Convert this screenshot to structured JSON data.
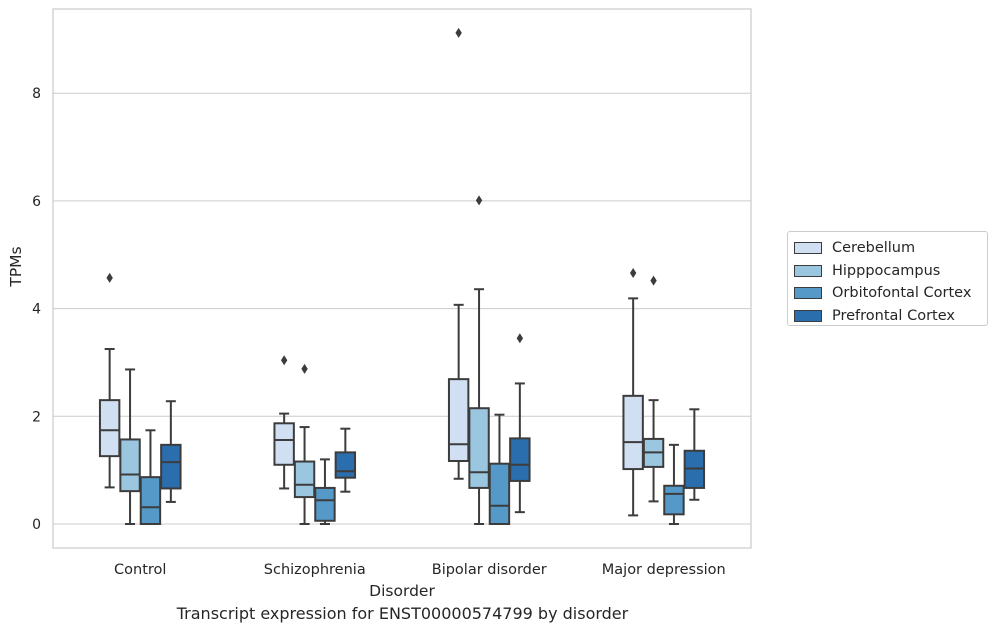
{
  "chart_data": {
    "type": "box",
    "title": "Transcript expression for ENST00000574799 by disorder",
    "xlabel": "Disorder",
    "ylabel": "TPMs",
    "ylim": [
      -0.45,
      9.6
    ],
    "yticks": [
      0,
      2,
      4,
      6,
      8
    ],
    "grid": "horizontal",
    "legend_position": "right",
    "categories": [
      "Control",
      "Schizophrenia",
      "Bipolar disorder",
      "Major depression"
    ],
    "series": [
      {
        "name": "Cerebellum",
        "color": "#d0e0f2",
        "boxes": [
          {
            "min": 0.68,
            "q1": 1.26,
            "median": 1.74,
            "q3": 2.3,
            "max": 3.25,
            "outliers": [
              4.57
            ]
          },
          {
            "min": 0.66,
            "q1": 1.1,
            "median": 1.56,
            "q3": 1.87,
            "max": 2.05,
            "outliers": [
              3.04
            ]
          },
          {
            "min": 0.84,
            "q1": 1.17,
            "median": 1.48,
            "q3": 2.69,
            "max": 4.07,
            "outliers": [
              9.12
            ]
          },
          {
            "min": 0.16,
            "q1": 1.02,
            "median": 1.52,
            "q3": 2.38,
            "max": 4.19,
            "outliers": [
              4.66
            ]
          }
        ]
      },
      {
        "name": "Hipppocampus",
        "color": "#9ac6e0",
        "boxes": [
          {
            "min": 0.0,
            "q1": 0.61,
            "median": 0.92,
            "q3": 1.57,
            "max": 2.87,
            "outliers": []
          },
          {
            "min": 0.0,
            "q1": 0.5,
            "median": 0.73,
            "q3": 1.16,
            "max": 1.8,
            "outliers": [
              2.88
            ]
          },
          {
            "min": 0.0,
            "q1": 0.67,
            "median": 0.96,
            "q3": 2.15,
            "max": 4.36,
            "outliers": [
              6.01
            ]
          },
          {
            "min": 0.42,
            "q1": 1.06,
            "median": 1.33,
            "q3": 1.58,
            "max": 2.3,
            "outliers": [
              4.52
            ]
          }
        ]
      },
      {
        "name": "Orbitofontal Cortex",
        "color": "#5599c8",
        "boxes": [
          {
            "min": 0.0,
            "q1": 0.0,
            "median": 0.31,
            "q3": 0.87,
            "max": 1.74,
            "outliers": []
          },
          {
            "min": 0.0,
            "q1": 0.06,
            "median": 0.44,
            "q3": 0.67,
            "max": 1.2,
            "outliers": []
          },
          {
            "min": 0.0,
            "q1": 0.0,
            "median": 0.34,
            "q3": 1.12,
            "max": 2.03,
            "outliers": []
          },
          {
            "min": 0.0,
            "q1": 0.18,
            "median": 0.56,
            "q3": 0.71,
            "max": 1.47,
            "outliers": []
          }
        ]
      },
      {
        "name": "Prefrontal Cortex",
        "color": "#2a6eae",
        "boxes": [
          {
            "min": 0.41,
            "q1": 0.66,
            "median": 1.15,
            "q3": 1.47,
            "max": 2.28,
            "outliers": []
          },
          {
            "min": 0.6,
            "q1": 0.86,
            "median": 0.98,
            "q3": 1.33,
            "max": 1.77,
            "outliers": []
          },
          {
            "min": 0.22,
            "q1": 0.8,
            "median": 1.1,
            "q3": 1.59,
            "max": 2.61,
            "outliers": [
              3.45
            ]
          },
          {
            "min": 0.45,
            "q1": 0.67,
            "median": 1.03,
            "q3": 1.36,
            "max": 2.13,
            "outliers": []
          }
        ]
      }
    ]
  }
}
